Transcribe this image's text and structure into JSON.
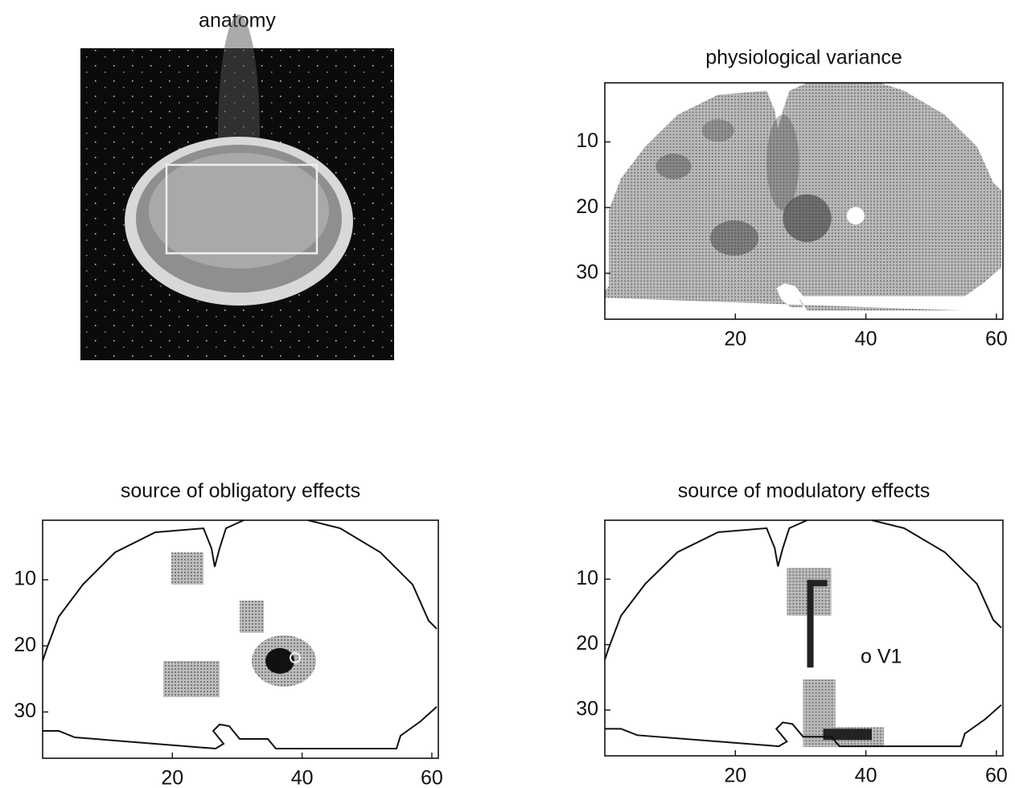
{
  "chart_data": [
    {
      "type": "image",
      "title": "anatomy"
    },
    {
      "type": "image",
      "title": "physiological variance",
      "xlim": [
        0,
        61
      ],
      "ylim": [
        37,
        1
      ],
      "xticks": [
        20,
        40,
        60
      ],
      "yticks": [
        10,
        20,
        30
      ]
    },
    {
      "type": "image",
      "title": "source of obligatory effects",
      "xlim": [
        0,
        61
      ],
      "ylim": [
        37,
        1
      ],
      "xticks": [
        20,
        40,
        60
      ],
      "yticks": [
        10,
        20,
        30
      ]
    },
    {
      "type": "image",
      "title": "source of modulatory effects",
      "xlim": [
        0,
        61
      ],
      "ylim": [
        37,
        1
      ],
      "xticks": [
        20,
        40,
        60
      ],
      "yticks": [
        10,
        20,
        30
      ],
      "annotation": "o V1"
    }
  ]
}
